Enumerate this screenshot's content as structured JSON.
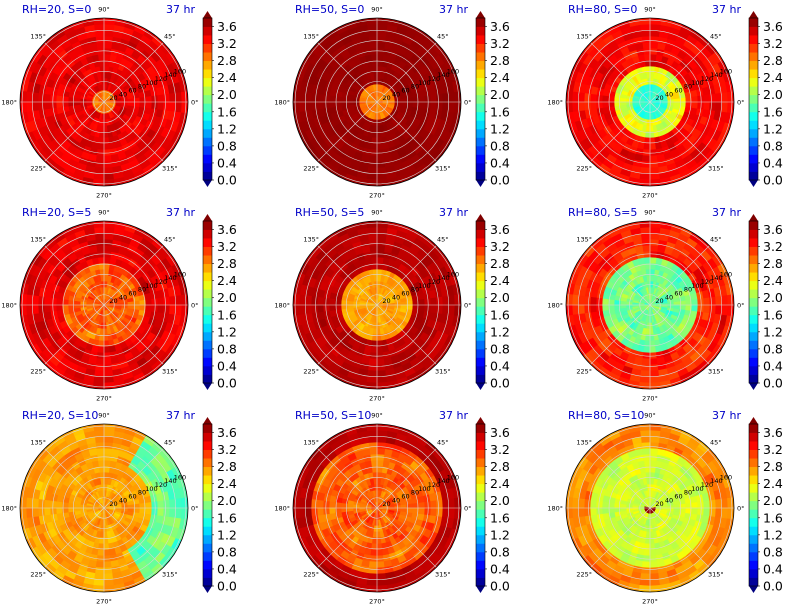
{
  "figure": {
    "colormap": "jet",
    "colorbar": {
      "ticks": [
        "3.6",
        "3.2",
        "2.8",
        "2.4",
        "2.0",
        "1.6",
        "1.2",
        "0.8",
        "0.4",
        "0.0"
      ],
      "range": [
        0.0,
        3.8
      ]
    },
    "angle_labels": [
      "90°",
      "45°",
      "0°",
      "315°",
      "270°",
      "225°",
      "180°",
      "135°"
    ],
    "radial_labels": [
      "20",
      "40",
      "60",
      "80",
      "100",
      "120",
      "140",
      "160"
    ]
  },
  "chart_data": [
    {
      "type": "heatmap",
      "projection": "polar",
      "title": "RH=20, S=0",
      "time": "37 hr",
      "coverage": "mostly dark red and red, orange and yellow bands, small core"
    },
    {
      "type": "heatmap",
      "projection": "polar",
      "title": "RH=50, S=0",
      "time": "37 hr",
      "coverage": "almost entirely dark red, small orange core"
    },
    {
      "type": "heatmap",
      "projection": "polar",
      "title": "RH=80, S=0",
      "time": "37 hr",
      "coverage": "cyan-green core, yellow ring, red and dark red outside"
    },
    {
      "type": "heatmap",
      "projection": "polar",
      "title": "RH=20, S=5",
      "time": "37 hr",
      "coverage": "mixed red, dark red, orange, yellow"
    },
    {
      "type": "heatmap",
      "projection": "polar",
      "title": "RH=50, S=5",
      "time": "37 hr",
      "coverage": "orange and yellow core, dark red outside"
    },
    {
      "type": "heatmap",
      "projection": "polar",
      "title": "RH=80, S=5",
      "time": "37 hr",
      "coverage": "large cyan and yellow areas, red and dark red"
    },
    {
      "type": "heatmap",
      "projection": "polar",
      "title": "RH=20, S=10",
      "time": "37 hr",
      "coverage": "orange and yellow dominant, cyan patches to the east"
    },
    {
      "type": "heatmap",
      "projection": "polar",
      "title": "RH=50, S=10",
      "time": "37 hr",
      "coverage": "orange and red, yellow patches, dark red rim"
    },
    {
      "type": "heatmap",
      "projection": "polar",
      "title": "RH=80, S=10",
      "time": "37 hr",
      "coverage": "yellow and cyan dominant, dark red eye, orange rim"
    }
  ]
}
